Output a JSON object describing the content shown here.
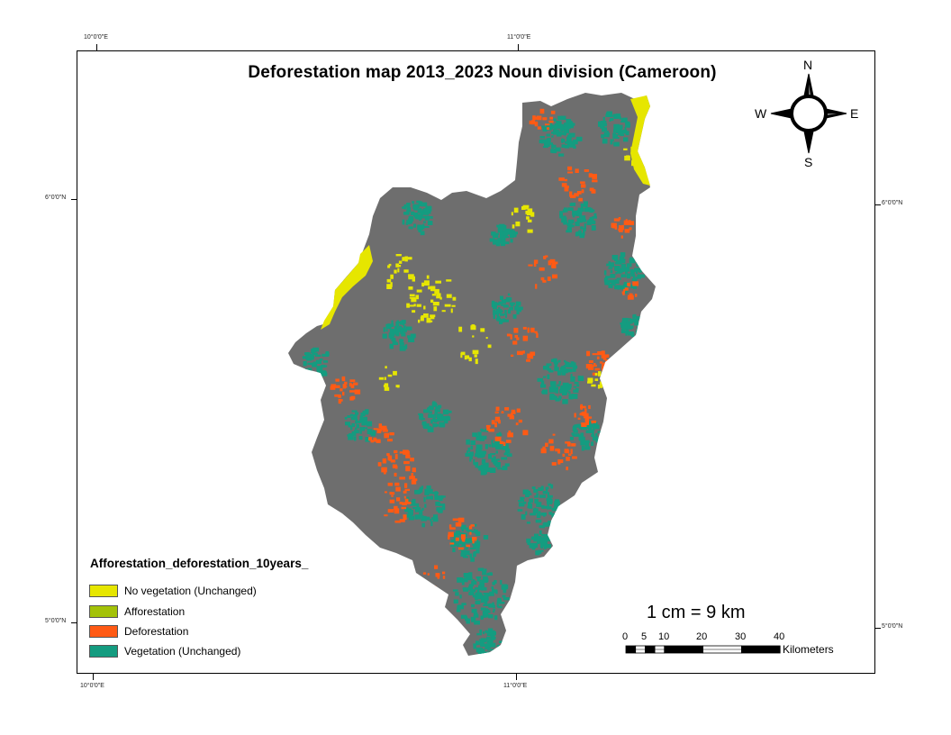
{
  "title": "Deforestation map 2013_2023 Noun division (Cameroon)",
  "coordinates": {
    "top_left": "10°0'0\"E",
    "top_right": "11°0'0\"E",
    "bottom_left": "10°0'0\"E",
    "bottom_right": "11°0'0\"E",
    "left_upper": "6°0'0\"N",
    "left_lower": "5°0'0\"N",
    "right_upper": "6°0'0\"N",
    "right_lower": "5°0'0\"N"
  },
  "compass": {
    "n": "N",
    "s": "S",
    "e": "E",
    "w": "W"
  },
  "legend": {
    "title": "Afforestation_deforestation_10years_",
    "items": [
      {
        "label": "No vegetation (Unchanged)",
        "color": "#e6e600"
      },
      {
        "label": "Afforestation",
        "color": "#a3c208"
      },
      {
        "label": "Deforestation",
        "color": "#ff5a14"
      },
      {
        "label": "Vegetation (Unchanged)",
        "color": "#149c80"
      }
    ]
  },
  "scale": {
    "text": "1 cm = 9 km",
    "ticks": [
      "0",
      "5",
      "10",
      "20",
      "30",
      "40"
    ],
    "unit": "Kilometers"
  },
  "colors": {
    "no_change": "#6e6e6e",
    "no_vegetation": "#e6e600",
    "deforestation": "#ff5a14",
    "vegetation": "#149c80"
  }
}
